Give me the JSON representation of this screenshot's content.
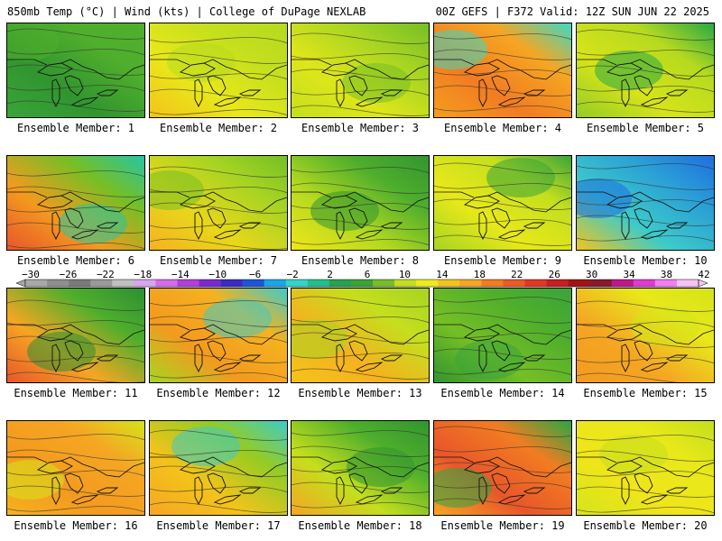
{
  "header": {
    "left": "850mb Temp (°C) | Wind (kts) | College of DuPage NEXLAB",
    "right": "00Z GEFS | F372 Valid: 12Z SUN JUN 22 2025"
  },
  "members": [
    {
      "label": "Ensemble Member: 1",
      "colors": [
        "#4fae2c",
        "#31952f",
        "#3aa43a",
        "#4fae2c"
      ]
    },
    {
      "label": "Ensemble Member: 2",
      "colors": [
        "#c4df1d",
        "#e8e81a",
        "#f4c31a",
        "#b6da1f"
      ]
    },
    {
      "label": "Ensemble Member: 3",
      "colors": [
        "#a7d422",
        "#dfe61a",
        "#c4df1d",
        "#75bf25"
      ]
    },
    {
      "label": "Ensemble Member: 4",
      "colors": [
        "#f5a623",
        "#f27c21",
        "#f59d1f",
        "#3bd9c5"
      ]
    },
    {
      "label": "Ensemble Member: 5",
      "colors": [
        "#b6da1f",
        "#d6e31a",
        "#94cc24",
        "#28a844"
      ]
    },
    {
      "label": "Ensemble Member: 6",
      "colors": [
        "#75bf25",
        "#f39a1f",
        "#e8562a",
        "#25c6a2"
      ]
    },
    {
      "label": "Ensemble Member: 7",
      "colors": [
        "#a7d422",
        "#e8d71a",
        "#f5b21f",
        "#75bf25"
      ]
    },
    {
      "label": "Ensemble Member: 8",
      "colors": [
        "#4fae2c",
        "#b6da1f",
        "#f0e51a",
        "#31952f"
      ]
    },
    {
      "label": "Ensemble Member: 9",
      "colors": [
        "#c4df1d",
        "#e8e81a",
        "#a7d422",
        "#3aa43a"
      ]
    },
    {
      "label": "Ensemble Member: 10",
      "colors": [
        "#2a9fd6",
        "#3dcbc9",
        "#f2c41c",
        "#1e6ee0"
      ]
    },
    {
      "label": "Ensemble Member: 11",
      "colors": [
        "#4fae2c",
        "#f5a623",
        "#e8562a",
        "#2c8f32"
      ]
    },
    {
      "label": "Ensemble Member: 12",
      "colors": [
        "#f5b21f",
        "#f39a1f",
        "#a7d422",
        "#3dcbc9"
      ]
    },
    {
      "label": "Ensemble Member: 13",
      "colors": [
        "#c4df1d",
        "#f5b21f",
        "#f4c31a",
        "#a7d422"
      ]
    },
    {
      "label": "Ensemble Member: 14",
      "colors": [
        "#4fae2c",
        "#75bf25",
        "#31952f",
        "#3aa43a"
      ]
    },
    {
      "label": "Ensemble Member: 15",
      "colors": [
        "#e8e81a",
        "#f5a623",
        "#f39a1f",
        "#d6e31a"
      ]
    },
    {
      "label": "Ensemble Member: 16",
      "colors": [
        "#f5a623",
        "#f39a1f",
        "#f5b21f",
        "#d6e31a"
      ]
    },
    {
      "label": "Ensemble Member: 17",
      "colors": [
        "#94cc24",
        "#f4c31a",
        "#f5a623",
        "#3dcbc9"
      ]
    },
    {
      "label": "Ensemble Member: 18",
      "colors": [
        "#4fae2c",
        "#c4df1d",
        "#f5a623",
        "#31952f"
      ]
    },
    {
      "label": "Ensemble Member: 19",
      "colors": [
        "#f27c21",
        "#e8562a",
        "#f5a623",
        "#28a844"
      ]
    },
    {
      "label": "Ensemble Member: 20",
      "colors": [
        "#e8e81a",
        "#f0e51a",
        "#d6e31a",
        "#c4df1d"
      ]
    }
  ],
  "scale": {
    "labels": [
      "−30",
      "−26",
      "−22",
      "−18",
      "−14",
      "−10",
      "−6",
      "−2",
      "2",
      "6",
      "10",
      "14",
      "18",
      "22",
      "26",
      "30",
      "34",
      "38",
      "42"
    ],
    "colors": [
      "#a8a8a8",
      "#8f8f8f",
      "#7a7a7a",
      "#9a9a9a",
      "#c0c0c0",
      "#d9a4f0",
      "#d66ce8",
      "#b23fd9",
      "#7a2ad0",
      "#3b2bc2",
      "#1a57d8",
      "#18a6e8",
      "#33d4c9",
      "#21bf8c",
      "#25a34f",
      "#3aa434",
      "#75bf25",
      "#c4df1d",
      "#f0ea1a",
      "#f4c31a",
      "#f5a623",
      "#f27c21",
      "#ee5a24",
      "#e53523",
      "#c81e1e",
      "#a01414",
      "#8a1a2a",
      "#c0188a",
      "#e03ad0",
      "#f27ef0",
      "#f8c3f4"
    ]
  }
}
